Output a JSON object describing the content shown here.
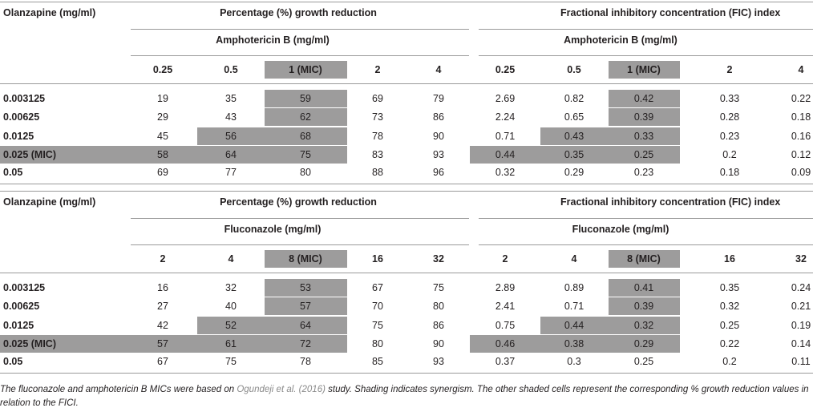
{
  "tables": [
    {
      "row_header": "Olanzapine (mg/ml)",
      "growth_header": "Percentage (%) growth reduction",
      "fici_header": "Fractional inhibitory concentration (FIC) index",
      "drug_header": "Amphotericin B (mg/ml)",
      "concentrations": [
        "0.25",
        "0.5",
        "1 (MIC)",
        "2",
        "4"
      ],
      "rows": [
        {
          "label": "0.003125",
          "growth": [
            "19",
            "35",
            "59",
            "69",
            "79"
          ],
          "fici": [
            "2.69",
            "0.82",
            "0.42",
            "0.33",
            "0.22"
          ]
        },
        {
          "label": "0.00625",
          "growth": [
            "29",
            "43",
            "62",
            "73",
            "86"
          ],
          "fici": [
            "2.24",
            "0.65",
            "0.39",
            "0.28",
            "0.18"
          ]
        },
        {
          "label": "0.0125",
          "growth": [
            "45",
            "56",
            "68",
            "78",
            "90"
          ],
          "fici": [
            "0.71",
            "0.43",
            "0.33",
            "0.23",
            "0.16"
          ]
        },
        {
          "label": "0.025 (MIC)",
          "growth": [
            "58",
            "64",
            "75",
            "83",
            "93"
          ],
          "fici": [
            "0.44",
            "0.35",
            "0.25",
            "0.2",
            "0.12"
          ]
        },
        {
          "label": "0.05",
          "growth": [
            "69",
            "77",
            "80",
            "88",
            "96"
          ],
          "fici": [
            "0.32",
            "0.29",
            "0.23",
            "0.18",
            "0.09"
          ]
        }
      ]
    },
    {
      "row_header": "Olanzapine (mg/ml)",
      "growth_header": "Percentage (%) growth reduction",
      "fici_header": "Fractional inhibitory concentration (FIC) index",
      "drug_header": "Fluconazole (mg/ml)",
      "concentrations": [
        "2",
        "4",
        "8 (MIC)",
        "16",
        "32"
      ],
      "rows": [
        {
          "label": "0.003125",
          "growth": [
            "16",
            "32",
            "53",
            "67",
            "75"
          ],
          "fici": [
            "2.89",
            "0.89",
            "0.41",
            "0.35",
            "0.24"
          ]
        },
        {
          "label": "0.00625",
          "growth": [
            "27",
            "40",
            "57",
            "70",
            "80"
          ],
          "fici": [
            "2.41",
            "0.71",
            "0.39",
            "0.32",
            "0.21"
          ]
        },
        {
          "label": "0.0125",
          "growth": [
            "42",
            "52",
            "64",
            "75",
            "86"
          ],
          "fici": [
            "0.75",
            "0.44",
            "0.32",
            "0.25",
            "0.19"
          ]
        },
        {
          "label": "0.025 (MIC)",
          "growth": [
            "57",
            "61",
            "72",
            "80",
            "90"
          ],
          "fici": [
            "0.46",
            "0.38",
            "0.29",
            "0.22",
            "0.14"
          ]
        },
        {
          "label": "0.05",
          "growth": [
            "67",
            "75",
            "78",
            "85",
            "93"
          ],
          "fici": [
            "0.37",
            "0.3",
            "0.25",
            "0.2",
            "0.11"
          ]
        }
      ]
    }
  ],
  "caption": {
    "part1": "The fluconazole and amphotericin B MICs were based on ",
    "citation": "Ogundeji et al. (2016)",
    "part2": " study. Shading indicates synergism. The other shaded cells represent the corresponding % growth reduction values in relation to the FICI."
  },
  "colors": {
    "shade": "#9d9c9c",
    "rule": "#9a9a9a",
    "citation": "#8a8a8a"
  }
}
